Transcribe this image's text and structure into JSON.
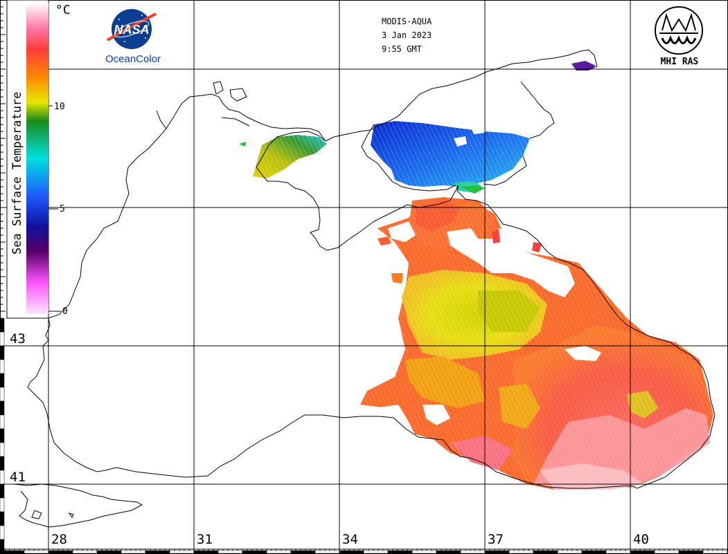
{
  "header": {
    "satellite": "MODIS-AQUA",
    "date": "3 Jan 2023",
    "time": "9:55 GMT"
  },
  "logos": {
    "nasa_word": "NASA",
    "left_caption": "OceanColor",
    "right_caption": "MHI RAS"
  },
  "legend": {
    "title": "Sea Surface Temperature",
    "unit": "°C",
    "ticks": [
      "10",
      "5",
      "0"
    ],
    "colors": [
      "#ffffff",
      "#ff3c8c",
      "#ff8a00",
      "#e6e600",
      "#1a8c1a",
      "#00e0e0",
      "#1e5aff",
      "#1010a0",
      "#5a0066",
      "#ff66ff",
      "#ffd6ff"
    ]
  },
  "axes": {
    "lon_labels": [
      "28",
      "31",
      "34",
      "37",
      "40"
    ],
    "lat_labels": [
      "43",
      "41"
    ]
  }
}
